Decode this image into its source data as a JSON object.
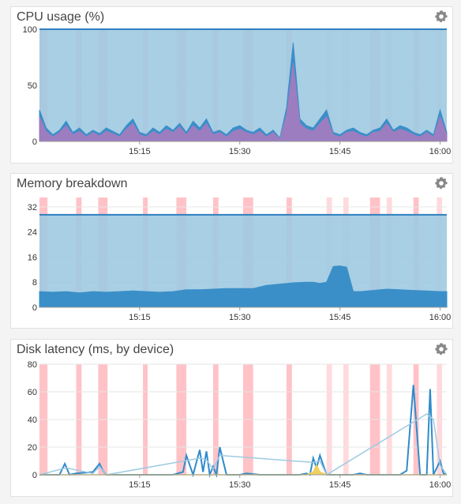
{
  "panels": [
    {
      "title": "CPU usage (%)",
      "gear_icon": "gear-icon",
      "chart_data": {
        "type": "area",
        "title": "CPU usage (%)",
        "y_ticks": [
          "0",
          "50",
          "100"
        ],
        "ylim": [
          0,
          100
        ],
        "x_ticks": [
          "15:15",
          "15:30",
          "15:45",
          "16:00"
        ],
        "x_tick_minutes": [
          15,
          30,
          45,
          60
        ],
        "xlim_minutes": [
          0,
          61
        ],
        "limit_line": 100,
        "series": [
          {
            "color": "#9ecae1",
            "values_summary": "filled to 100"
          },
          {
            "color": "#3a8fc8",
            "x": [
              0,
              1,
              2,
              3,
              4,
              5,
              6,
              7,
              8,
              9,
              10,
              11,
              12,
              13,
              14,
              15,
              16,
              17,
              18,
              19,
              20,
              21,
              22,
              23,
              24,
              25,
              26,
              27,
              28,
              29,
              30,
              31,
              32,
              33,
              34,
              35,
              36,
              37,
              38,
              39,
              40,
              41,
              42,
              43,
              44,
              45,
              46,
              47,
              48,
              49,
              50,
              51,
              52,
              53,
              54,
              55,
              56,
              57,
              58,
              59,
              60,
              61
            ],
            "values": [
              28,
              12,
              6,
              10,
              18,
              8,
              12,
              6,
              10,
              7,
              12,
              9,
              6,
              14,
              20,
              8,
              6,
              12,
              8,
              14,
              10,
              16,
              8,
              18,
              12,
              20,
              8,
              10,
              6,
              12,
              14,
              10,
              8,
              12,
              6,
              10,
              3,
              30,
              88,
              20,
              14,
              12,
              20,
              28,
              8,
              6,
              10,
              12,
              8,
              6,
              10,
              12,
              20,
              10,
              14,
              12,
              8,
              6,
              10,
              6,
              28,
              8
            ]
          },
          {
            "color": "#9b7dc0",
            "x": [
              0,
              1,
              2,
              3,
              4,
              5,
              6,
              7,
              8,
              9,
              10,
              11,
              12,
              13,
              14,
              15,
              16,
              17,
              18,
              19,
              20,
              21,
              22,
              23,
              24,
              25,
              26,
              27,
              28,
              29,
              30,
              31,
              32,
              33,
              34,
              35,
              36,
              37,
              38,
              39,
              40,
              41,
              42,
              43,
              44,
              45,
              46,
              47,
              48,
              49,
              50,
              51,
              52,
              53,
              54,
              55,
              56,
              57,
              58,
              59,
              60,
              61
            ],
            "values": [
              22,
              9,
              4,
              8,
              14,
              6,
              9,
              4,
              8,
              5,
              9,
              7,
              4,
              11,
              16,
              6,
              4,
              9,
              6,
              11,
              8,
              13,
              6,
              14,
              9,
              16,
              6,
              8,
              4,
              9,
              11,
              8,
              6,
              9,
              4,
              8,
              2,
              24,
              70,
              16,
              11,
              9,
              16,
              22,
              6,
              4,
              8,
              9,
              6,
              4,
              8,
              9,
              16,
              8,
              11,
              9,
              6,
              4,
              8,
              4,
              22,
              6
            ]
          }
        ],
        "highlight_bands_minutes": [
          [
            0,
            1.2,
            "#ffc2c7"
          ],
          [
            5.5,
            6.3,
            "#ffc2c7"
          ],
          [
            8.8,
            10.2,
            "#ffc2c7"
          ],
          [
            15.5,
            16.2,
            "#ffc2c7"
          ],
          [
            20.5,
            22,
            "#ffc2c7"
          ],
          [
            26,
            26.8,
            "#ffc2c7"
          ],
          [
            30.5,
            32,
            "#ffc2c7"
          ],
          [
            37,
            37.8,
            "#ffc2c7"
          ],
          [
            43,
            43.8,
            "#ffdadd"
          ],
          [
            45.5,
            46.3,
            "#ffdadd"
          ],
          [
            49.5,
            51,
            "#ffc2c7"
          ],
          [
            52,
            52.8,
            "#ffdadd"
          ],
          [
            56,
            56.8,
            "#ffc2c7"
          ],
          [
            59.5,
            60.3,
            "#ffdadd"
          ]
        ]
      }
    },
    {
      "title": "Memory breakdown",
      "gear_icon": "gear-icon",
      "chart_data": {
        "type": "area",
        "title": "Memory breakdown",
        "y_ticks": [
          "0",
          "8",
          "16",
          "24",
          "32"
        ],
        "ylim": [
          0,
          35
        ],
        "x_ticks": [
          "15:15",
          "15:30",
          "15:45",
          "16:00"
        ],
        "x_tick_minutes": [
          15,
          30,
          45,
          60
        ],
        "xlim_minutes": [
          0,
          61
        ],
        "limit_line": 29.5,
        "series": [
          {
            "color": "#9ecae1",
            "values_summary": "filled to 29.5"
          },
          {
            "color": "#3a8fc8",
            "x": [
              0,
              2,
              4,
              6,
              8,
              10,
              12,
              14,
              16,
              18,
              20,
              22,
              24,
              26,
              28,
              30,
              32,
              34,
              36,
              38,
              40,
              41,
              42,
              43,
              44,
              45,
              46,
              47,
              48,
              50,
              52,
              54,
              56,
              58,
              60,
              61
            ],
            "values": [
              5,
              4.8,
              5,
              4.6,
              5,
              4.8,
              5,
              5.2,
              5,
              4.8,
              5,
              5.6,
              5.6,
              5.8,
              6,
              6,
              6,
              7,
              7.4,
              7.8,
              8,
              8,
              7.6,
              8,
              13,
              13.2,
              12.8,
              5,
              5,
              5.4,
              5.8,
              5.6,
              5.4,
              5.2,
              5,
              5
            ]
          }
        ],
        "highlight_bands_minutes": [
          [
            0,
            1.2,
            "#ffc2c7"
          ],
          [
            5.5,
            6.3,
            "#ffc2c7"
          ],
          [
            8.8,
            10.2,
            "#ffc2c7"
          ],
          [
            15.5,
            16.2,
            "#ffc2c7"
          ],
          [
            20.5,
            22,
            "#ffc2c7"
          ],
          [
            26,
            26.8,
            "#ffc2c7"
          ],
          [
            30.5,
            32,
            "#ffc2c7"
          ],
          [
            37,
            37.8,
            "#ffc2c7"
          ],
          [
            43,
            43.8,
            "#ffdadd"
          ],
          [
            45.5,
            46.3,
            "#ffdadd"
          ],
          [
            49.5,
            51,
            "#ffc2c7"
          ],
          [
            52,
            52.8,
            "#ffdadd"
          ],
          [
            56,
            56.8,
            "#ffc2c7"
          ],
          [
            59.5,
            60.3,
            "#ffdadd"
          ]
        ]
      }
    },
    {
      "title": "Disk latency (ms, by device)",
      "gear_icon": "gear-icon",
      "chart_data": {
        "type": "line",
        "title": "Disk latency (ms, by device)",
        "y_ticks": [
          "0",
          "20",
          "40",
          "60",
          "80"
        ],
        "ylim": [
          0,
          80
        ],
        "x_ticks": [
          "15:15",
          "15:30",
          "15:45",
          "16:00"
        ],
        "x_tick_minutes": [
          15,
          30,
          45,
          60
        ],
        "xlim_minutes": [
          0,
          61
        ],
        "series": [
          {
            "color": "#2e8bcc",
            "x": [
              0,
              3,
              3.8,
              4.5,
              5.5,
              8,
              9,
              9.5,
              10,
              12,
              14,
              16,
              18,
              20,
              21.5,
              22,
              23,
              24,
              24.5,
              25,
              25.5,
              26,
              26.5,
              27,
              28,
              30,
              31,
              33,
              35,
              37,
              38,
              39,
              40,
              40.5,
              41,
              41.5,
              42,
              43,
              44,
              45,
              46,
              47,
              48,
              49,
              50,
              52,
              53,
              54,
              55,
              56,
              57,
              58,
              58.5,
              59,
              60,
              60.5,
              61
            ],
            "values": [
              0,
              0,
              8,
              0,
              1,
              2,
              8,
              3,
              0,
              0,
              0,
              0,
              0,
              0,
              2,
              14,
              0,
              18,
              2,
              17,
              0,
              6,
              0,
              20,
              0,
              0,
              1,
              0,
              0,
              0,
              0,
              0,
              1,
              0,
              12,
              5,
              14,
              0,
              0,
              0,
              0,
              0,
              1,
              0,
              0,
              0,
              0,
              0,
              3,
              65,
              0,
              0,
              62,
              0,
              10,
              1,
              0
            ]
          },
          {
            "color": "#9ecae1",
            "x": [
              0,
              4,
              8,
              9,
              10,
              24,
              25,
              26,
              27,
              41,
              42,
              43,
              58,
              59,
              60,
              61
            ],
            "values": [
              0,
              5,
              1,
              6,
              0,
              12,
              11,
              4,
              14,
              9,
              10,
              0,
              44,
              40,
              7,
              0
            ]
          },
          {
            "color": "#f0d060",
            "x": [
              0,
              40,
              41,
              41.5,
              42,
              43,
              61
            ],
            "values": [
              0,
              0,
              2,
              7,
              2,
              0,
              0
            ]
          }
        ],
        "highlight_bands_minutes": [
          [
            0,
            1.2,
            "#ffc2c7"
          ],
          [
            5.5,
            6.3,
            "#ffc2c7"
          ],
          [
            8.8,
            10.2,
            "#ffc2c7"
          ],
          [
            15.5,
            16.2,
            "#ffc2c7"
          ],
          [
            20.5,
            22,
            "#ffc2c7"
          ],
          [
            26,
            26.8,
            "#ffc2c7"
          ],
          [
            30.5,
            32,
            "#ffc2c7"
          ],
          [
            37,
            37.8,
            "#ffc2c7"
          ],
          [
            43,
            43.8,
            "#ffdadd"
          ],
          [
            45.5,
            46.3,
            "#ffdadd"
          ],
          [
            49.5,
            51,
            "#ffc2c7"
          ],
          [
            52,
            52.8,
            "#ffdadd"
          ],
          [
            56,
            56.8,
            "#ffc2c7"
          ],
          [
            59.5,
            60.3,
            "#ffdadd"
          ]
        ]
      }
    }
  ]
}
